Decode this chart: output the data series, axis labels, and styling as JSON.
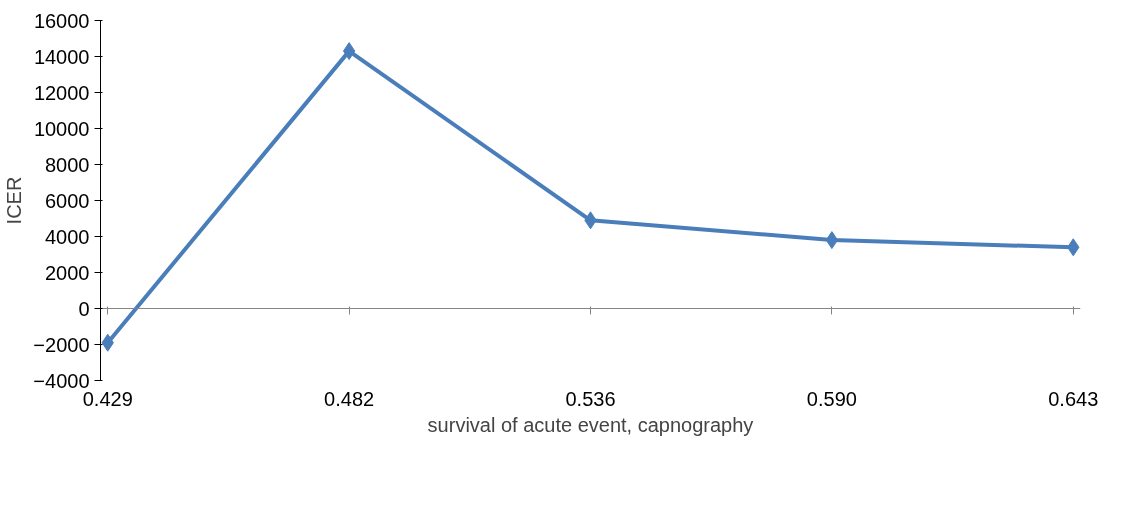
{
  "chart_data": {
    "type": "line",
    "xlabel": "survival of acute event, capnography",
    "ylabel": "ICER",
    "categories": [
      "0.429",
      "0.482",
      "0.536",
      "0.590",
      "0.643"
    ],
    "series": [
      {
        "color": "#4a7ebb",
        "values": [
          -1900,
          14300,
          4900,
          3800,
          3400
        ]
      }
    ],
    "ylim": [
      -4000,
      16000
    ],
    "yticks": [
      -4000,
      -2000,
      0,
      2000,
      4000,
      6000,
      8000,
      10000,
      12000,
      14000,
      16000
    ],
    "marker": "diamond",
    "line_style": "solid"
  }
}
